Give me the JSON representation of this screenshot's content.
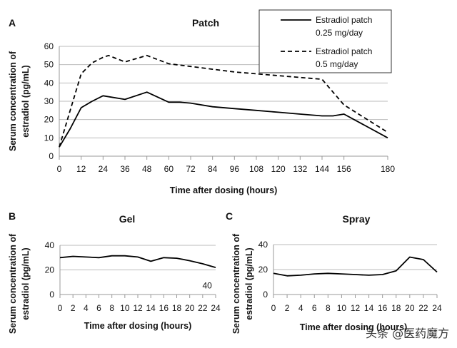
{
  "chart_data": [
    {
      "type": "line",
      "panel": "A",
      "title": "Patch",
      "xlabel": "Time after dosing (hours)",
      "ylabel": "Serum concentration of estradiol (pg/mL)",
      "xlim": [
        0,
        180
      ],
      "ylim": [
        0,
        60
      ],
      "xticks": [
        0,
        12,
        24,
        36,
        48,
        60,
        72,
        84,
        96,
        108,
        120,
        132,
        144,
        156,
        180
      ],
      "yticks": [
        0,
        10,
        20,
        30,
        40,
        50,
        60
      ],
      "grid": true,
      "legend": "top-right",
      "series": [
        {
          "name": "Estradiol patch 0.25 mg/day",
          "style": "solid",
          "x": [
            0,
            6,
            12,
            18,
            24,
            36,
            48,
            60,
            66,
            72,
            84,
            96,
            108,
            120,
            132,
            144,
            150,
            156,
            180
          ],
          "y": [
            5,
            15,
            26.5,
            30,
            33,
            31,
            35,
            29.5,
            29.5,
            29,
            27,
            26,
            25,
            24,
            23,
            22,
            22,
            23,
            10
          ]
        },
        {
          "name": "Estradiol patch 0.5 mg/day",
          "style": "dashed",
          "x": [
            0,
            6,
            12,
            18,
            24,
            27,
            36,
            48,
            60,
            72,
            84,
            96,
            108,
            120,
            132,
            144,
            156,
            180
          ],
          "y": [
            5,
            25,
            45,
            51,
            54,
            55,
            51.5,
            55,
            50.5,
            49,
            47.5,
            46,
            45,
            44,
            43,
            42,
            28,
            13
          ]
        }
      ],
      "legend_lines": [
        [
          "Estradiol patch",
          "0.25 mg/day"
        ],
        [
          "Estradiol patch",
          "0.5 mg/day"
        ]
      ]
    },
    {
      "type": "line",
      "panel": "B",
      "title": "Gel",
      "xlabel": "Time after dosing (hours)",
      "ylabel": "Serum concentration of estradiol (pg/mL)",
      "xlim": [
        0,
        24
      ],
      "ylim": [
        0,
        40
      ],
      "xticks": [
        0,
        2,
        4,
        6,
        8,
        10,
        12,
        14,
        16,
        18,
        20,
        22,
        24
      ],
      "yticks": [
        0,
        20,
        40
      ],
      "grid": true,
      "annotation": "40",
      "series": [
        {
          "x": [
            0,
            2,
            4,
            6,
            8,
            10,
            12,
            14,
            16,
            18,
            20,
            22,
            24
          ],
          "y": [
            30,
            31,
            30.5,
            30,
            31.5,
            31.5,
            30.5,
            27,
            30,
            29.5,
            27.5,
            25,
            22
          ]
        }
      ]
    },
    {
      "type": "line",
      "panel": "C",
      "title": "Spray",
      "xlabel": "Time after dosing (hours)",
      "ylabel": "Serum concentration of estradiol (pg/mL)",
      "xlim": [
        0,
        24
      ],
      "ylim": [
        0,
        40
      ],
      "xticks": [
        0,
        2,
        4,
        6,
        8,
        10,
        12,
        14,
        16,
        18,
        20,
        22,
        24
      ],
      "yticks": [
        0,
        20,
        40
      ],
      "grid": true,
      "series": [
        {
          "x": [
            0,
            2,
            4,
            6,
            8,
            10,
            12,
            14,
            16,
            18,
            20,
            22,
            24
          ],
          "y": [
            17,
            15,
            15.5,
            16.5,
            17,
            16.5,
            16,
            15.5,
            16,
            19,
            30,
            28,
            18
          ]
        }
      ]
    }
  ],
  "watermark": "头条 @医药魔方"
}
